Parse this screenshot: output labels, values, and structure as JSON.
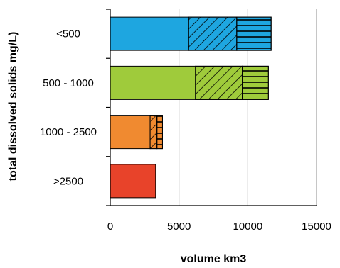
{
  "chart_data": {
    "type": "bar",
    "orientation": "horizontal",
    "stacked": true,
    "categories": [
      "<500",
      "500 - 1000",
      "1000 - 2500",
      ">2500"
    ],
    "series": [
      {
        "pattern": "solid",
        "values": [
          5700,
          6200,
          2900,
          3300
        ]
      },
      {
        "pattern": "diagonal-hatch",
        "values": [
          3500,
          3400,
          500,
          0
        ]
      },
      {
        "pattern": "horizontal-hatch",
        "values": [
          2500,
          1900,
          400,
          0
        ]
      }
    ],
    "category_colors": [
      "#1ea6e0",
      "#9fcb3b",
      "#f08a30",
      "#e8432a"
    ],
    "xlabel": "volume km3",
    "ylabel": "total dissolved solids mg/L)",
    "xlim": [
      0,
      15000
    ],
    "xticks": [
      "0",
      "5000",
      "10000",
      "15000"
    ],
    "grid": "vertical",
    "legend": "none"
  }
}
